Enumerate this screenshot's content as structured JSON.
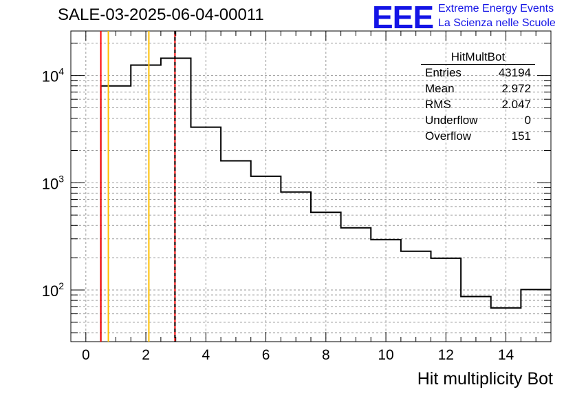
{
  "chart_data": {
    "type": "histogram",
    "title": "SALE-03-2025-06-04-00011",
    "xlabel": "Hit multiplicity Bot",
    "ylabel": "",
    "yscale": "log",
    "xlim": [
      -0.5,
      15.5
    ],
    "ylim": [
      33,
      26000
    ],
    "bin_width": 1,
    "bin_edges": [
      0.5,
      1.5,
      2.5,
      3.5,
      4.5,
      5.5,
      6.5,
      7.5,
      8.5,
      9.5,
      10.5,
      11.5,
      12.5,
      13.5,
      14.5,
      15.5
    ],
    "values": [
      8000,
      12500,
      14500,
      3300,
      1600,
      1150,
      820,
      530,
      380,
      295,
      230,
      198,
      87,
      68,
      101
    ],
    "x_ticks": [
      0,
      2,
      4,
      6,
      8,
      10,
      12,
      14
    ],
    "y_tick_labels": [
      {
        "value": 10000,
        "base": "10",
        "exp": "4"
      },
      {
        "value": 1000,
        "base": "10",
        "exp": "3"
      },
      {
        "value": 100,
        "base": "10",
        "exp": "2"
      }
    ],
    "vertical_lines": [
      {
        "x": 0.5,
        "color": "#ff0000",
        "style": "solid"
      },
      {
        "x": 0.75,
        "color": "#ffbf00",
        "style": "solid"
      },
      {
        "x": 2.1,
        "color": "#ffbf00",
        "style": "solid"
      },
      {
        "x": 2.97,
        "color": "#ff0000",
        "style": "solid"
      },
      {
        "x": 2.97,
        "color": "#000000",
        "style": "dashed"
      }
    ],
    "grid": true
  },
  "logo": {
    "text": "EEE",
    "line1": "Extreme Energy Events",
    "line2": "La Scienza nelle Scuole",
    "color": "#1414e6"
  },
  "stats": {
    "name": "HitMultBot",
    "rows": [
      {
        "label": "Entries",
        "value": "43194"
      },
      {
        "label": "Mean",
        "value": "2.972"
      },
      {
        "label": "RMS",
        "value": "2.047"
      },
      {
        "label": "Underflow",
        "value": "0"
      },
      {
        "label": "Overflow",
        "value": "151"
      }
    ]
  }
}
